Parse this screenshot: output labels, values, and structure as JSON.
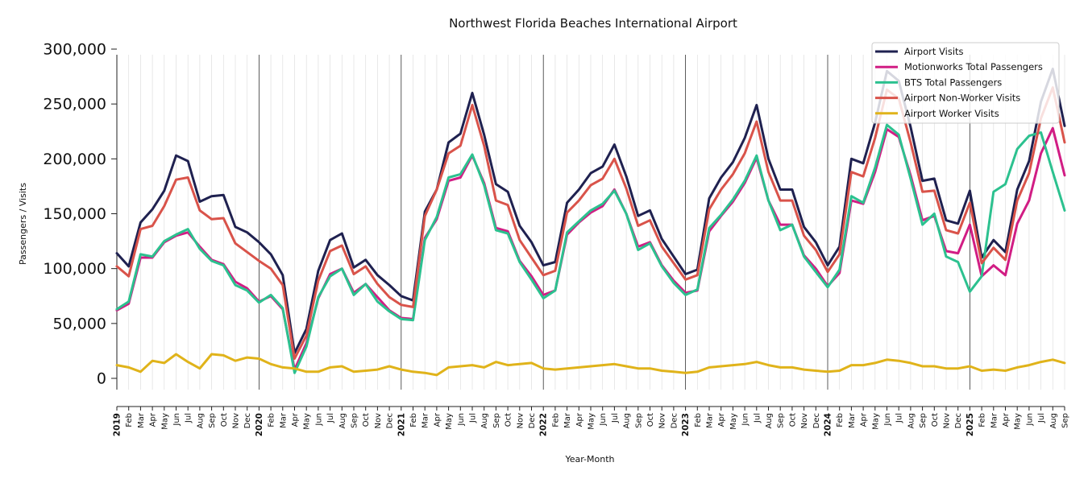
{
  "chart_data": {
    "type": "line",
    "title": "Northwest Florida Beaches International Airport",
    "xlabel": "Year-Month",
    "ylabel": "Passengers / Visits",
    "ylim": [
      -10000,
      300000
    ],
    "yticks": [
      0,
      50000,
      100000,
      150000,
      200000,
      250000,
      300000
    ],
    "ytick_labels": [
      "0",
      "50,000",
      "100,000",
      "150,000",
      "200,000",
      "250,000",
      "300,000"
    ],
    "grid": "vertical monthly gridlines, dark lines at each January",
    "legend_position": "top-right",
    "x": [
      "2019-01",
      "2019-02",
      "2019-03",
      "2019-04",
      "2019-05",
      "2019-06",
      "2019-07",
      "2019-08",
      "2019-09",
      "2019-10",
      "2019-11",
      "2019-12",
      "2020-01",
      "2020-02",
      "2020-03",
      "2020-04",
      "2020-05",
      "2020-06",
      "2020-07",
      "2020-08",
      "2020-09",
      "2020-10",
      "2020-11",
      "2020-12",
      "2021-01",
      "2021-02",
      "2021-03",
      "2021-04",
      "2021-05",
      "2021-06",
      "2021-07",
      "2021-08",
      "2021-09",
      "2021-10",
      "2021-11",
      "2021-12",
      "2022-01",
      "2022-02",
      "2022-03",
      "2022-04",
      "2022-05",
      "2022-06",
      "2022-07",
      "2022-08",
      "2022-09",
      "2022-10",
      "2022-11",
      "2022-12",
      "2023-01",
      "2023-02",
      "2023-03",
      "2023-04",
      "2023-05",
      "2023-06",
      "2023-07",
      "2023-08",
      "2023-09",
      "2023-10",
      "2023-11",
      "2023-12",
      "2024-01",
      "2024-02",
      "2024-03",
      "2024-04",
      "2024-05",
      "2024-06",
      "2024-07",
      "2024-08",
      "2024-09",
      "2024-10",
      "2024-11",
      "2024-12",
      "2025-01",
      "2025-02",
      "2025-03",
      "2025-04",
      "2025-05",
      "2025-06",
      "2025-07",
      "2025-08",
      "2025-09"
    ],
    "x_tick_labels": [
      "2019",
      "Feb",
      "Mar",
      "Apr",
      "May",
      "Jun",
      "Jul",
      "Aug",
      "Sep",
      "Oct",
      "Nov",
      "Dec",
      "2020",
      "Feb",
      "Mar",
      "Apr",
      "May",
      "Jun",
      "Jul",
      "Aug",
      "Sep",
      "Oct",
      "Nov",
      "Dec",
      "2021",
      "Feb",
      "Mar",
      "Apr",
      "May",
      "Jun",
      "Jul",
      "Aug",
      "Sep",
      "Oct",
      "Nov",
      "Dec",
      "2022",
      "Feb",
      "Mar",
      "Apr",
      "May",
      "Jun",
      "Jul",
      "Aug",
      "Sep",
      "Oct",
      "Nov",
      "Dec",
      "2023",
      "Feb",
      "Mar",
      "Apr",
      "May",
      "Jun",
      "Jul",
      "Aug",
      "Sep",
      "Oct",
      "Nov",
      "Dec",
      "2024",
      "Feb",
      "Mar",
      "Apr",
      "May",
      "Jun",
      "Jul",
      "Aug",
      "Sep",
      "Oct",
      "Nov",
      "Dec",
      "2025",
      "Feb",
      "Mar",
      "Apr",
      "May",
      "Jun",
      "Jul",
      "Aug",
      "Sep"
    ],
    "series": [
      {
        "name": "Airport Visits",
        "color": "#1f2150",
        "values": [
          114000,
          102000,
          142000,
          154000,
          171000,
          203000,
          198000,
          161000,
          166000,
          167000,
          138000,
          133000,
          124000,
          113000,
          94000,
          23000,
          45000,
          98000,
          126000,
          132000,
          101000,
          108000,
          94000,
          85000,
          75000,
          71000,
          152000,
          172000,
          215000,
          223000,
          260000,
          222000,
          177000,
          170000,
          139000,
          124000,
          103000,
          106000,
          160000,
          172000,
          187000,
          193000,
          213000,
          184000,
          148000,
          153000,
          127000,
          111000,
          95000,
          99000,
          164000,
          183000,
          197000,
          219000,
          249000,
          200000,
          172000,
          172000,
          138000,
          124000,
          103000,
          120000,
          200000,
          196000,
          233000,
          280000,
          271000,
          229000,
          180000,
          182000,
          144000,
          141000,
          171000,
          110000,
          126000,
          115000,
          172000,
          198000,
          252000,
          282000,
          230000
        ]
      },
      {
        "name": "Motionworks Total Passengers",
        "color": "#d11d84",
        "values": [
          62000,
          68000,
          110000,
          110000,
          124000,
          130000,
          133000,
          120000,
          108000,
          104000,
          88000,
          82000,
          70000,
          75000,
          63000,
          8000,
          32000,
          73000,
          95000,
          100000,
          78000,
          86000,
          74000,
          62000,
          55000,
          54000,
          128000,
          145000,
          180000,
          183000,
          203000,
          178000,
          137000,
          134000,
          107000,
          93000,
          76000,
          80000,
          131000,
          142000,
          151000,
          157000,
          172000,
          150000,
          120000,
          124000,
          103000,
          89000,
          78000,
          80000,
          134000,
          148000,
          161000,
          178000,
          201000,
          162000,
          140000,
          140000,
          112000,
          100000,
          84000,
          96000,
          162000,
          159000,
          188000,
          227000,
          220000,
          185000,
          144000,
          148000,
          116000,
          114000,
          140000,
          93000,
          103000,
          94000,
          141000,
          162000,
          205000,
          228000,
          185000
        ]
      },
      {
        "name": "BTS Total Passengers",
        "color": "#2cc18f",
        "values": [
          63000,
          70000,
          113000,
          111000,
          125000,
          131000,
          136000,
          118000,
          107000,
          103000,
          85000,
          80000,
          69000,
          76000,
          64000,
          5000,
          29000,
          74000,
          93000,
          100000,
          76000,
          86000,
          70000,
          61000,
          54000,
          53000,
          126000,
          147000,
          183000,
          186000,
          204000,
          176000,
          135000,
          132000,
          106000,
          90000,
          73000,
          80000,
          133000,
          143000,
          153000,
          159000,
          171000,
          150000,
          117000,
          123000,
          102000,
          87000,
          76000,
          81000,
          137000,
          149000,
          163000,
          180000,
          203000,
          162000,
          135000,
          140000,
          111000,
          97000,
          83000,
          99000,
          166000,
          160000,
          192000,
          231000,
          222000,
          182000,
          140000,
          150000,
          111000,
          106000,
          79000,
          93000,
          170000,
          177000,
          209000,
          221000,
          224000,
          188000,
          153000
        ]
      },
      {
        "name": "Airport Non-Worker Visits",
        "color": "#d9534a",
        "values": [
          102000,
          93000,
          136000,
          139000,
          157000,
          181000,
          183000,
          153000,
          145000,
          146000,
          123000,
          115000,
          107000,
          100000,
          85000,
          18000,
          39000,
          89000,
          116000,
          121000,
          95000,
          102000,
          86000,
          74000,
          67000,
          65000,
          148000,
          172000,
          205000,
          212000,
          249000,
          212000,
          162000,
          158000,
          126000,
          110000,
          94000,
          98000,
          151000,
          162000,
          176000,
          182000,
          200000,
          173000,
          139000,
          144000,
          120000,
          105000,
          90000,
          94000,
          154000,
          172000,
          186000,
          205000,
          234000,
          188000,
          162000,
          162000,
          130000,
          117000,
          97000,
          113000,
          188000,
          184000,
          219000,
          263000,
          255000,
          215000,
          170000,
          171000,
          135000,
          132000,
          160000,
          105000,
          119000,
          108000,
          162000,
          187000,
          237000,
          265000,
          215000
        ]
      },
      {
        "name": "Airport Worker Visits",
        "color": "#e0b31a",
        "values": [
          12000,
          10000,
          6000,
          16000,
          14000,
          22000,
          15000,
          9000,
          22000,
          21000,
          16000,
          19000,
          18000,
          13000,
          10000,
          9000,
          6000,
          6000,
          10000,
          11000,
          6000,
          7000,
          8000,
          11000,
          8000,
          6000,
          5000,
          3000,
          10000,
          11000,
          12000,
          10000,
          15000,
          12000,
          13000,
          14000,
          9000,
          8000,
          9000,
          10000,
          11000,
          12000,
          13000,
          11000,
          9000,
          9000,
          7000,
          6000,
          5000,
          6000,
          10000,
          11000,
          12000,
          13000,
          15000,
          12000,
          10000,
          10000,
          8000,
          7000,
          6000,
          7000,
          12000,
          12000,
          14000,
          17000,
          16000,
          14000,
          11000,
          11000,
          9000,
          9000,
          11000,
          7000,
          8000,
          7000,
          10000,
          12000,
          15000,
          17000,
          14000
        ]
      }
    ]
  }
}
